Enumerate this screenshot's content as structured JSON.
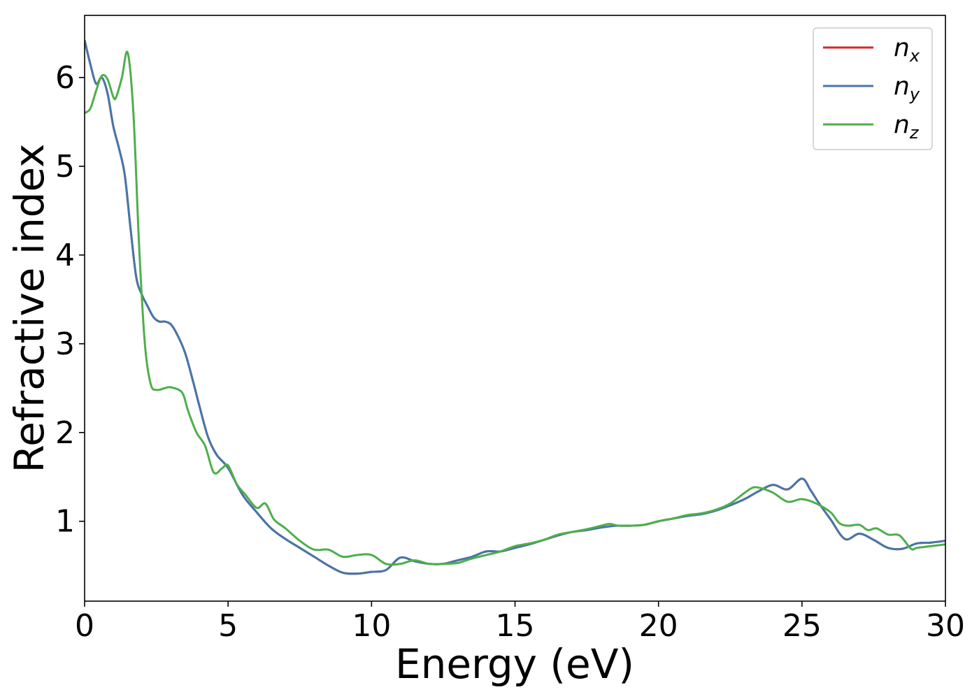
{
  "chart_data": {
    "type": "line",
    "xlabel": "Energy (eV)",
    "ylabel": "Refractive index",
    "xlim": [
      0,
      30
    ],
    "ylim": [
      0.1,
      6.7
    ],
    "xticks": [
      0,
      5,
      10,
      15,
      20,
      25,
      30
    ],
    "yticks": [
      1,
      2,
      3,
      4,
      5,
      6
    ],
    "grid": false,
    "legend_position": "top-right",
    "series": [
      {
        "name": "n",
        "sub": "x",
        "color": "#d62728",
        "x": [
          0,
          0.2,
          0.4,
          0.6,
          0.8,
          1.0,
          1.2,
          1.4,
          1.6,
          1.8,
          2.0,
          2.2,
          2.4,
          2.6,
          2.8,
          3.0,
          3.2,
          3.5,
          3.8,
          4.0,
          4.3,
          4.6,
          5.0,
          5.5,
          6.0,
          6.5,
          7.0,
          7.5,
          8.0,
          8.5,
          9.0,
          9.5,
          10.0,
          10.5,
          11.0,
          11.5,
          12.0,
          12.5,
          13.0,
          13.5,
          14.0,
          14.5,
          15.0,
          15.5,
          16.0,
          16.5,
          17.0,
          17.5,
          18.0,
          18.5,
          19.0,
          19.5,
          20.0,
          20.5,
          21.0,
          21.5,
          22.0,
          22.5,
          23.0,
          23.5,
          24.0,
          24.5,
          25.0,
          25.3,
          25.6,
          26.0,
          26.5,
          27.0,
          27.5,
          28.0,
          28.5,
          29.0,
          29.5,
          30.0
        ],
        "y": [
          6.42,
          6.15,
          5.93,
          6.0,
          5.82,
          5.45,
          5.2,
          4.9,
          4.3,
          3.75,
          3.55,
          3.42,
          3.3,
          3.25,
          3.25,
          3.22,
          3.12,
          2.9,
          2.55,
          2.3,
          1.95,
          1.75,
          1.6,
          1.3,
          1.1,
          0.92,
          0.8,
          0.7,
          0.6,
          0.5,
          0.42,
          0.41,
          0.43,
          0.45,
          0.59,
          0.55,
          0.52,
          0.52,
          0.56,
          0.6,
          0.66,
          0.66,
          0.7,
          0.74,
          0.79,
          0.84,
          0.88,
          0.9,
          0.93,
          0.95,
          0.95,
          0.96,
          1.0,
          1.03,
          1.06,
          1.08,
          1.12,
          1.18,
          1.25,
          1.34,
          1.41,
          1.36,
          1.48,
          1.35,
          1.2,
          1.02,
          0.8,
          0.86,
          0.79,
          0.7,
          0.69,
          0.75,
          0.76,
          0.78
        ]
      },
      {
        "name": "n",
        "sub": "y",
        "color": "#4477aa",
        "x": [
          0,
          0.2,
          0.4,
          0.6,
          0.8,
          1.0,
          1.2,
          1.4,
          1.6,
          1.8,
          2.0,
          2.2,
          2.4,
          2.6,
          2.8,
          3.0,
          3.2,
          3.5,
          3.8,
          4.0,
          4.3,
          4.6,
          5.0,
          5.5,
          6.0,
          6.5,
          7.0,
          7.5,
          8.0,
          8.5,
          9.0,
          9.5,
          10.0,
          10.5,
          11.0,
          11.5,
          12.0,
          12.5,
          13.0,
          13.5,
          14.0,
          14.5,
          15.0,
          15.5,
          16.0,
          16.5,
          17.0,
          17.5,
          18.0,
          18.5,
          19.0,
          19.5,
          20.0,
          20.5,
          21.0,
          21.5,
          22.0,
          22.5,
          23.0,
          23.5,
          24.0,
          24.5,
          25.0,
          25.3,
          25.6,
          26.0,
          26.5,
          27.0,
          27.5,
          28.0,
          28.5,
          29.0,
          29.5,
          30.0
        ],
        "y": [
          6.42,
          6.15,
          5.93,
          6.0,
          5.82,
          5.45,
          5.2,
          4.9,
          4.3,
          3.75,
          3.55,
          3.42,
          3.3,
          3.25,
          3.25,
          3.22,
          3.12,
          2.9,
          2.55,
          2.3,
          1.95,
          1.75,
          1.6,
          1.3,
          1.1,
          0.92,
          0.8,
          0.7,
          0.6,
          0.5,
          0.42,
          0.41,
          0.43,
          0.45,
          0.59,
          0.55,
          0.52,
          0.52,
          0.56,
          0.6,
          0.66,
          0.66,
          0.7,
          0.74,
          0.79,
          0.84,
          0.88,
          0.9,
          0.93,
          0.95,
          0.95,
          0.96,
          1.0,
          1.03,
          1.06,
          1.08,
          1.12,
          1.18,
          1.25,
          1.34,
          1.41,
          1.36,
          1.48,
          1.35,
          1.2,
          1.02,
          0.8,
          0.86,
          0.79,
          0.7,
          0.69,
          0.75,
          0.76,
          0.78
        ]
      },
      {
        "name": "n",
        "sub": "z",
        "color": "#4daf4a",
        "x": [
          0,
          0.2,
          0.4,
          0.6,
          0.8,
          1.0,
          1.1,
          1.3,
          1.5,
          1.7,
          1.9,
          2.1,
          2.3,
          2.5,
          2.8,
          3.0,
          3.4,
          3.6,
          3.9,
          4.2,
          4.5,
          4.8,
          5.0,
          5.3,
          5.6,
          6.0,
          6.3,
          6.6,
          7.0,
          7.5,
          8.0,
          8.5,
          9.0,
          9.5,
          10.0,
          10.5,
          11.0,
          11.5,
          12.0,
          12.5,
          13.0,
          13.5,
          14.0,
          14.5,
          15.0,
          15.5,
          16.0,
          16.5,
          17.0,
          17.5,
          18.0,
          18.3,
          18.6,
          19.0,
          19.5,
          20.0,
          20.5,
          21.0,
          21.5,
          22.0,
          22.5,
          23.0,
          23.3,
          23.6,
          24.0,
          24.5,
          25.0,
          25.5,
          26.0,
          26.3,
          26.6,
          27.0,
          27.3,
          27.6,
          28.0,
          28.4,
          28.8,
          29.0,
          29.5,
          30.0
        ],
        "y": [
          5.6,
          5.65,
          5.85,
          6.02,
          5.98,
          5.78,
          5.78,
          6.0,
          6.28,
          5.6,
          4.1,
          3.0,
          2.55,
          2.48,
          2.5,
          2.51,
          2.45,
          2.25,
          2.0,
          1.85,
          1.55,
          1.6,
          1.63,
          1.42,
          1.3,
          1.15,
          1.2,
          1.02,
          0.92,
          0.78,
          0.68,
          0.68,
          0.6,
          0.62,
          0.62,
          0.52,
          0.52,
          0.56,
          0.52,
          0.52,
          0.53,
          0.58,
          0.62,
          0.66,
          0.72,
          0.75,
          0.79,
          0.85,
          0.88,
          0.91,
          0.95,
          0.97,
          0.95,
          0.95,
          0.96,
          1.0,
          1.03,
          1.07,
          1.09,
          1.13,
          1.2,
          1.32,
          1.38,
          1.37,
          1.32,
          1.22,
          1.25,
          1.2,
          1.1,
          0.98,
          0.95,
          0.96,
          0.9,
          0.92,
          0.85,
          0.84,
          0.69,
          0.7,
          0.72,
          0.74
        ]
      }
    ]
  }
}
